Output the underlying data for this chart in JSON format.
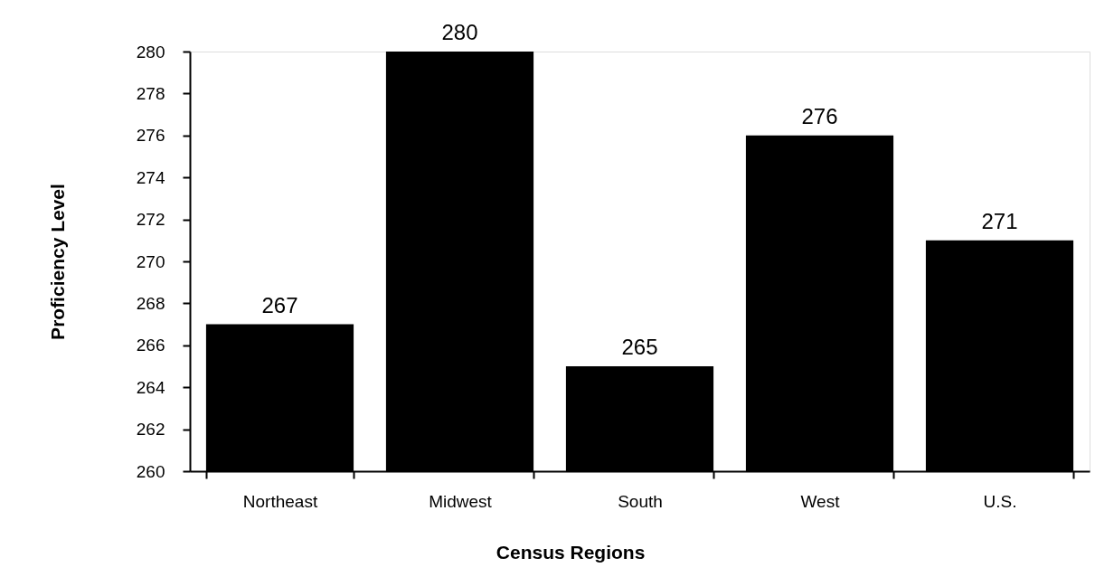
{
  "chart_data": {
    "type": "bar",
    "xlabel": "Census Regions",
    "ylabel": "Proficiency Level",
    "categories": [
      "Northeast",
      "Midwest",
      "South",
      "West",
      "U.S."
    ],
    "values": [
      267,
      280,
      265,
      276,
      271
    ],
    "color": "#000000",
    "data_labels": true,
    "ylim": [
      260,
      280
    ],
    "yticks": [
      260,
      262,
      264,
      266,
      268,
      270,
      272,
      274,
      276,
      278,
      280
    ]
  }
}
